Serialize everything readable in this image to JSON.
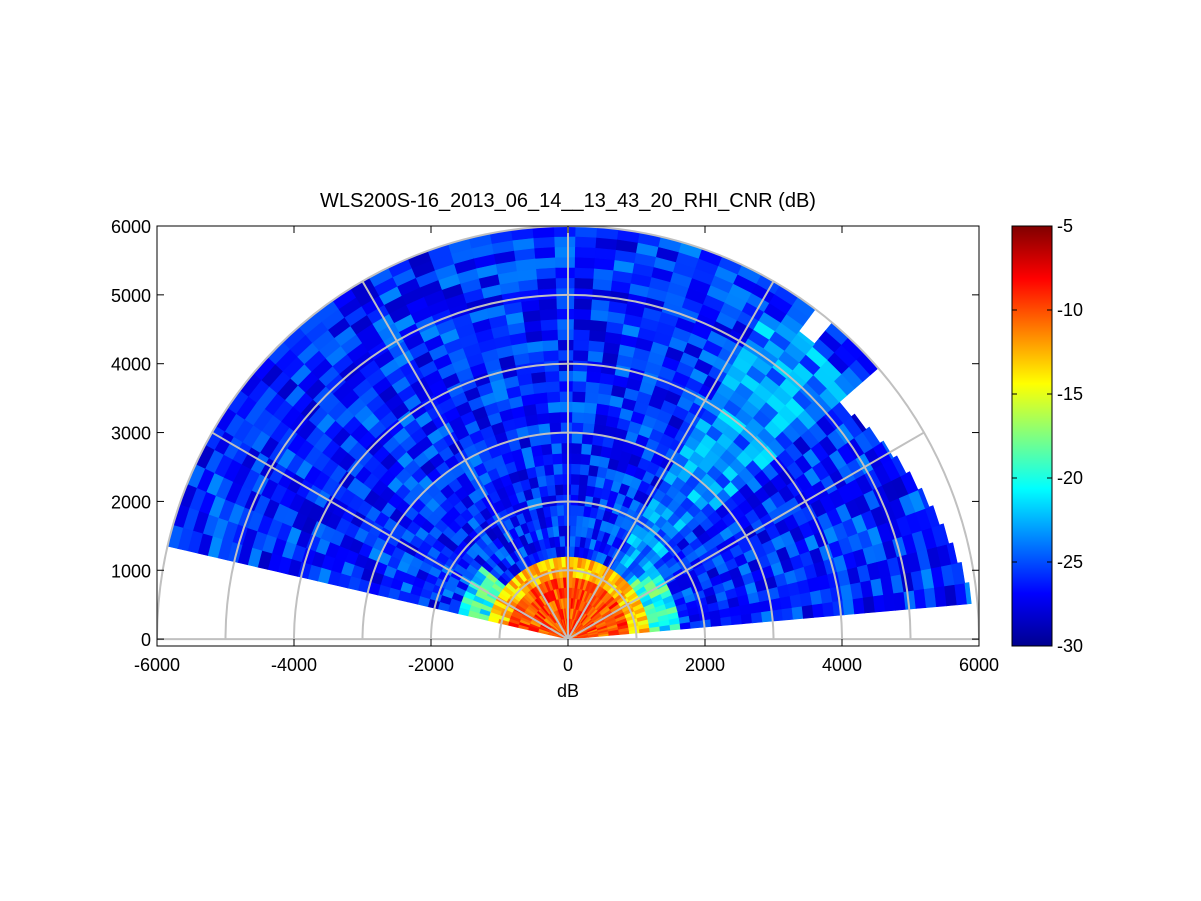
{
  "figure": {
    "title": "WLS200S-16_2013_06_14__13_43_20_RHI_CNR (dB)"
  },
  "chart_data": {
    "type": "heatmap",
    "subtype": "polar RHI scan (range-height indicator)",
    "title": "WLS200S-16_2013_06_14__13_43_20_RHI_CNR (dB)",
    "xlabel": "dB",
    "ylabel": "",
    "xlim": [
      -6000,
      6000
    ],
    "ylim": [
      -100,
      6000
    ],
    "x_ticks": [
      "-6000",
      "-4000",
      "-2000",
      "0",
      "2000",
      "4000",
      "6000"
    ],
    "x_tick_values": [
      -6000,
      -4000,
      -2000,
      0,
      2000,
      4000,
      6000
    ],
    "y_ticks": [
      "0",
      "1000",
      "2000",
      "3000",
      "4000",
      "5000",
      "6000"
    ],
    "y_tick_values": [
      0,
      1000,
      2000,
      3000,
      4000,
      5000,
      6000
    ],
    "colormap": "jet",
    "colorbar": {
      "range": [
        -30,
        -5
      ],
      "ticks": [
        "-5",
        "-10",
        "-15",
        "-20",
        "-25",
        "-30"
      ],
      "tick_values": [
        -5,
        -10,
        -15,
        -20,
        -25,
        -30
      ],
      "colors": [
        "#00008f",
        "#0000ff",
        "#0080ff",
        "#00ffff",
        "#80ff80",
        "#ffff00",
        "#ff8000",
        "#ff0000",
        "#800000"
      ]
    },
    "polar_grid": {
      "range_rings": [
        1000,
        2000,
        3000,
        4000,
        5000,
        6000
      ],
      "spoke_angles_deg": [
        0,
        30,
        60,
        90,
        120,
        150,
        180
      ]
    },
    "scan": {
      "elevation_min_deg": 5,
      "elevation_max_deg": 167,
      "max_range": 6000,
      "near_ring_max_range": 2000,
      "high_cnr_range": 1200,
      "background_cnr": -26,
      "near_field_cnr": -8
    }
  }
}
